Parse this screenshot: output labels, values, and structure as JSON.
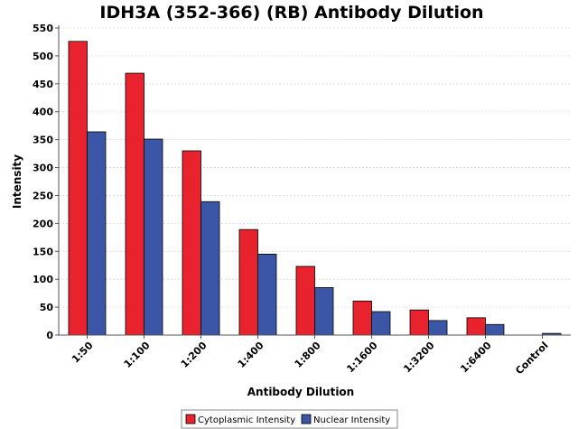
{
  "chart_data": {
    "type": "bar",
    "title": "IDH3A (352-366) (RB) Antibody Dilution",
    "xlabel": "Antibody Dilution",
    "ylabel": "Intensity",
    "ylim": [
      0,
      550
    ],
    "yticks": [
      0,
      50,
      100,
      150,
      200,
      250,
      300,
      350,
      400,
      450,
      500,
      550
    ],
    "grid": true,
    "legend_position": "bottom",
    "categories": [
      "1:50",
      "1:100",
      "1:200",
      "1:400",
      "1:800",
      "1:1600",
      "1:3200",
      "1:6400",
      "Control"
    ],
    "series": [
      {
        "name": "Cytoplasmic Intensity",
        "color": "#e8232e",
        "values": [
          526,
          469,
          330,
          189,
          123,
          61,
          45,
          31,
          null
        ]
      },
      {
        "name": "Nuclear Intensity",
        "color": "#3b56a6",
        "values": [
          364,
          351,
          239,
          145,
          85,
          42,
          26,
          19,
          3
        ]
      }
    ]
  }
}
